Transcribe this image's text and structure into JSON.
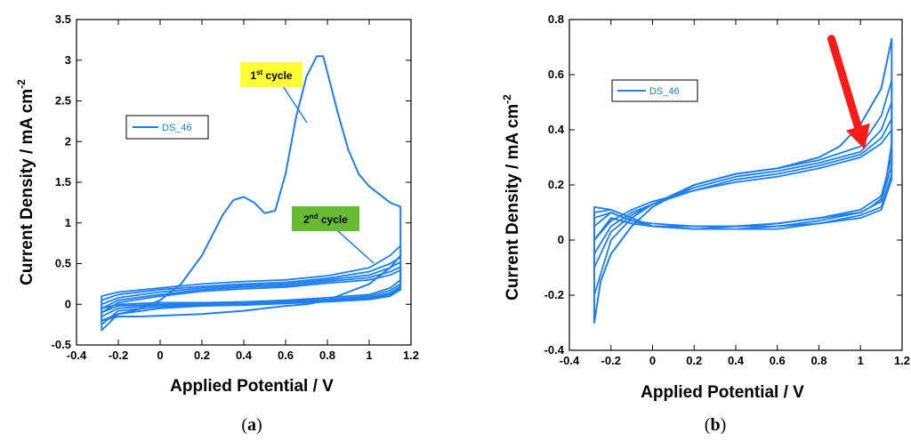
{
  "colors": {
    "series": "#1e7ff0",
    "arrow": "#ff1a1a",
    "first_cycle_bg": "#ffff33",
    "second_cycle_bg": "#66bb33",
    "frame": "#000000"
  },
  "chart_data": [
    {
      "type": "line",
      "panel_label_main": "a",
      "xlabel": "Applied Potential / V",
      "ylabel_main": "Current Density / mA cm",
      "ylabel_sup": "-2",
      "xlim": [
        -0.4,
        1.2
      ],
      "ylim": [
        -0.5,
        3.5
      ],
      "x_ticks": [
        -0.4,
        -0.2,
        0,
        0.2,
        0.4,
        0.6,
        0.8,
        1,
        1.2
      ],
      "y_ticks": [
        -0.5,
        0,
        0.5,
        1,
        1.5,
        2,
        2.5,
        3,
        3.5
      ],
      "x_tick_labels": [
        "-0.4",
        "-0.2",
        "0",
        "0.2",
        "0.4",
        "0.6",
        "0.8",
        "1",
        "1.2"
      ],
      "y_tick_labels": [
        "-0.5",
        "0",
        "0.5",
        "1",
        "1.5",
        "2",
        "2.5",
        "3",
        "3.5"
      ],
      "grid": false,
      "legend": {
        "position": "upper-left",
        "entries": [
          "DS_46"
        ]
      },
      "annotations": [
        {
          "main": "1",
          "sup": "st",
          "rest": " cycle",
          "style": "yellow-box",
          "points_to": [
            0.7,
            2.85
          ]
        },
        {
          "main": "2",
          "sup": "nd",
          "rest": " cycle",
          "style": "green-box",
          "points_to": [
            1.0,
            0.3
          ]
        }
      ],
      "series": [
        {
          "name": "DS_46",
          "x": [
            -0.28,
            -0.2,
            -0.1,
            0.0,
            0.1,
            0.2,
            0.3,
            0.35,
            0.4,
            0.45,
            0.5,
            0.55,
            0.6,
            0.65,
            0.7,
            0.75,
            0.78,
            0.8,
            0.85,
            0.9,
            0.95,
            1.0,
            1.05,
            1.1,
            1.15,
            1.15,
            1.1,
            1.0,
            0.9,
            0.8,
            0.7,
            0.6,
            0.5,
            0.4,
            0.3,
            0.2,
            0.1,
            0.0,
            -0.1,
            -0.2,
            -0.28
          ],
          "y": [
            -0.2,
            -0.12,
            -0.06,
            0.05,
            0.25,
            0.6,
            1.1,
            1.28,
            1.32,
            1.25,
            1.12,
            1.15,
            1.6,
            2.3,
            2.8,
            3.05,
            3.05,
            2.85,
            2.35,
            1.9,
            1.6,
            1.45,
            1.35,
            1.25,
            1.2,
            0.6,
            0.45,
            0.25,
            0.15,
            0.05,
            0.0,
            -0.02,
            -0.05,
            -0.08,
            -0.1,
            -0.12,
            -0.13,
            -0.14,
            -0.15,
            -0.15,
            -0.2
          ]
        }
      ],
      "cycles": [
        {
          "x": [
            -0.28,
            -0.2,
            0.0,
            0.2,
            0.4,
            0.6,
            0.8,
            1.0,
            1.1,
            1.15,
            1.15,
            1.1,
            1.0,
            0.8,
            0.6,
            0.4,
            0.2,
            0.0,
            -0.2,
            -0.28
          ],
          "y": [
            0.1,
            0.15,
            0.2,
            0.25,
            0.28,
            0.3,
            0.35,
            0.45,
            0.6,
            0.72,
            0.3,
            0.2,
            0.12,
            0.08,
            0.05,
            0.03,
            0.02,
            0.02,
            0.0,
            -0.05
          ]
        },
        {
          "x": [
            -0.28,
            -0.2,
            0.0,
            0.2,
            0.4,
            0.6,
            0.8,
            1.0,
            1.1,
            1.15,
            1.15,
            1.1,
            1.0,
            0.8,
            0.6,
            0.4,
            0.2,
            0.0,
            -0.2,
            -0.28
          ],
          "y": [
            0.05,
            0.12,
            0.18,
            0.22,
            0.25,
            0.27,
            0.32,
            0.4,
            0.5,
            0.58,
            0.25,
            0.17,
            0.1,
            0.06,
            0.04,
            0.02,
            0.01,
            0.0,
            -0.02,
            -0.1
          ]
        },
        {
          "x": [
            -0.28,
            -0.2,
            0.0,
            0.2,
            0.4,
            0.6,
            0.8,
            1.0,
            1.1,
            1.15,
            1.15,
            1.1,
            1.0,
            0.8,
            0.6,
            0.4,
            0.2,
            0.0,
            -0.2,
            -0.28
          ],
          "y": [
            0.0,
            0.08,
            0.15,
            0.2,
            0.23,
            0.25,
            0.3,
            0.36,
            0.45,
            0.52,
            0.22,
            0.14,
            0.08,
            0.05,
            0.03,
            0.01,
            0.0,
            -0.01,
            -0.05,
            -0.15
          ]
        },
        {
          "x": [
            -0.28,
            -0.2,
            0.0,
            0.2,
            0.4,
            0.6,
            0.8,
            1.0,
            1.1,
            1.15,
            1.15,
            1.1,
            1.0,
            0.8,
            0.6,
            0.4,
            0.2,
            0.0,
            -0.2,
            -0.28
          ],
          "y": [
            -0.05,
            0.05,
            0.12,
            0.18,
            0.21,
            0.23,
            0.28,
            0.33,
            0.4,
            0.46,
            0.2,
            0.12,
            0.07,
            0.04,
            0.02,
            0.0,
            -0.01,
            -0.03,
            -0.08,
            -0.25
          ]
        },
        {
          "x": [
            -0.28,
            -0.2,
            0.0,
            0.2,
            0.4,
            0.6,
            0.8,
            1.0,
            1.1,
            1.15,
            1.15,
            1.1,
            1.0,
            0.8,
            0.6,
            0.4,
            0.2,
            0.0,
            -0.2,
            -0.28
          ],
          "y": [
            -0.1,
            0.02,
            0.1,
            0.16,
            0.19,
            0.21,
            0.26,
            0.3,
            0.36,
            0.42,
            0.18,
            0.1,
            0.06,
            0.03,
            0.01,
            -0.01,
            -0.02,
            -0.05,
            -0.12,
            -0.32
          ]
        }
      ]
    },
    {
      "type": "line",
      "panel_label_main": "b",
      "xlabel": "Applied Potential / V",
      "ylabel_main": "Current  Density / mA  cm",
      "ylabel_sup": "-2",
      "xlim": [
        -0.4,
        1.2
      ],
      "ylim": [
        -0.4,
        0.8
      ],
      "x_ticks": [
        -0.4,
        -0.2,
        0,
        0.2,
        0.4,
        0.6,
        0.8,
        1,
        1.2
      ],
      "y_ticks": [
        -0.4,
        -0.2,
        0,
        0.2,
        0.4,
        0.6,
        0.8
      ],
      "x_tick_labels": [
        "-0.4",
        "-0.2",
        "0",
        "0.2",
        "0.4",
        "0.6",
        "0.8",
        "1",
        "1.2"
      ],
      "y_tick_labels": [
        "-0.4",
        "-0.2",
        "0",
        "0.2",
        "0.4",
        "0.6",
        "0.8"
      ],
      "grid": false,
      "legend": {
        "position": "upper-left",
        "entries": [
          "DS_46"
        ]
      },
      "arrow": {
        "from": [
          0.86,
          0.73
        ],
        "to": [
          1.02,
          0.33
        ]
      },
      "series": [
        {
          "name": "DS_46",
          "x": [
            -0.28,
            -0.25,
            -0.2,
            -0.1,
            0.0,
            0.2,
            0.4,
            0.6,
            0.8,
            0.9,
            1.0,
            1.1,
            1.15,
            1.15,
            1.12,
            1.1,
            1.05,
            1.0,
            0.9,
            0.8,
            0.6,
            0.4,
            0.2,
            0.0,
            -0.1,
            -0.2,
            -0.28
          ],
          "y": [
            -0.3,
            -0.15,
            -0.05,
            0.05,
            0.12,
            0.2,
            0.24,
            0.26,
            0.3,
            0.34,
            0.42,
            0.55,
            0.73,
            0.35,
            0.2,
            0.15,
            0.12,
            0.1,
            0.09,
            0.08,
            0.06,
            0.05,
            0.05,
            0.05,
            0.06,
            0.08,
            0.0
          ]
        }
      ],
      "cycles": [
        {
          "x": [
            -0.28,
            -0.2,
            -0.1,
            0.0,
            0.2,
            0.4,
            0.6,
            0.8,
            1.0,
            1.1,
            1.15,
            1.15,
            1.1,
            1.0,
            0.8,
            0.6,
            0.4,
            0.2,
            0.0,
            -0.1,
            -0.2,
            -0.28
          ],
          "y": [
            -0.2,
            0.0,
            0.08,
            0.13,
            0.2,
            0.24,
            0.26,
            0.29,
            0.34,
            0.45,
            0.58,
            0.3,
            0.16,
            0.11,
            0.08,
            0.06,
            0.05,
            0.05,
            0.06,
            0.07,
            0.1,
            0.05
          ]
        },
        {
          "x": [
            -0.28,
            -0.2,
            -0.1,
            0.0,
            0.2,
            0.4,
            0.6,
            0.8,
            1.0,
            1.1,
            1.15,
            1.15,
            1.1,
            1.0,
            0.8,
            0.6,
            0.4,
            0.2,
            0.0,
            -0.1,
            -0.2,
            -0.28
          ],
          "y": [
            -0.1,
            0.03,
            0.09,
            0.13,
            0.19,
            0.23,
            0.25,
            0.28,
            0.32,
            0.4,
            0.5,
            0.27,
            0.14,
            0.1,
            0.07,
            0.05,
            0.05,
            0.04,
            0.05,
            0.07,
            0.1,
            0.08
          ]
        },
        {
          "x": [
            -0.28,
            -0.2,
            -0.1,
            0.0,
            0.2,
            0.4,
            0.6,
            0.8,
            1.0,
            1.1,
            1.15,
            1.15,
            1.1,
            1.0,
            0.8,
            0.6,
            0.4,
            0.2,
            0.0,
            -0.1,
            -0.2,
            -0.28
          ],
          "y": [
            -0.05,
            0.05,
            0.1,
            0.13,
            0.18,
            0.22,
            0.24,
            0.27,
            0.31,
            0.37,
            0.44,
            0.24,
            0.12,
            0.09,
            0.06,
            0.05,
            0.04,
            0.04,
            0.05,
            0.08,
            0.11,
            0.1
          ]
        },
        {
          "x": [
            -0.28,
            -0.2,
            -0.1,
            0.0,
            0.2,
            0.4,
            0.6,
            0.8,
            1.0,
            1.1,
            1.15,
            1.15,
            1.1,
            1.0,
            0.8,
            0.6,
            0.4,
            0.2,
            0.0,
            -0.1,
            -0.2,
            -0.28
          ],
          "y": [
            0.0,
            0.07,
            0.11,
            0.14,
            0.18,
            0.21,
            0.23,
            0.26,
            0.3,
            0.35,
            0.4,
            0.22,
            0.11,
            0.08,
            0.06,
            0.04,
            0.04,
            0.04,
            0.05,
            0.08,
            0.11,
            0.12
          ]
        }
      ]
    }
  ]
}
